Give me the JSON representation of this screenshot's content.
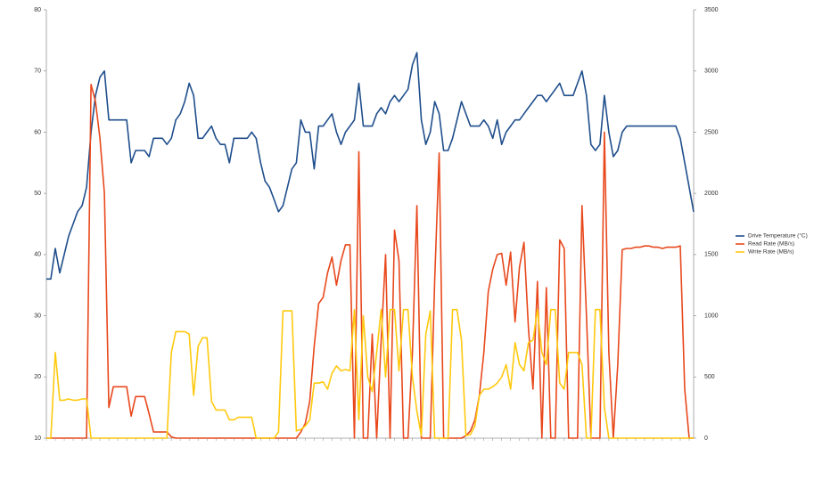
{
  "chart_data": {
    "type": "line",
    "ylim": [
      10,
      80
    ],
    "yticks": [
      10,
      20,
      30,
      40,
      50,
      60,
      70,
      80
    ],
    "y2lim": [
      0,
      3500
    ],
    "y2ticks": [
      0,
      500,
      1000,
      1500,
      2000,
      2500,
      3000,
      3500
    ],
    "legend": "right",
    "series": [
      {
        "name": "Drive Temperature (°C)",
        "color": "#1f4e8c",
        "values": [
          36,
          36,
          41,
          37,
          40,
          43,
          45,
          47,
          48,
          51,
          60,
          66,
          69,
          70,
          62,
          62,
          62,
          62,
          62,
          55,
          57,
          57,
          57,
          56,
          59,
          59,
          59,
          58,
          59,
          62,
          63,
          65,
          68,
          66,
          59,
          59,
          60,
          61,
          59,
          58,
          58,
          55,
          59,
          59,
          59,
          59,
          60,
          59,
          55,
          52,
          51,
          49,
          47,
          48,
          51,
          54,
          55,
          62,
          60,
          60,
          54,
          61,
          61,
          62,
          63,
          60,
          58,
          60,
          61,
          62,
          68,
          61,
          61,
          61,
          63,
          64,
          63,
          65,
          66,
          65,
          66,
          67,
          71,
          73,
          62,
          58,
          60,
          65,
          63,
          57,
          57,
          59,
          62,
          65,
          63,
          61,
          61,
          61,
          62,
          61,
          59,
          62,
          58,
          60,
          61,
          62,
          62,
          63,
          64,
          65,
          66,
          66,
          65,
          66,
          67,
          68,
          66,
          66,
          66,
          68,
          70,
          66,
          58,
          57,
          58,
          66,
          60,
          56,
          57,
          60,
          61,
          61,
          61,
          61,
          61,
          61,
          61,
          61,
          61,
          61,
          61,
          61,
          59,
          55,
          51,
          47
        ]
      },
      {
        "name": "Read Rate (MB/s)",
        "color": "#e8481c",
        "axis": "y2",
        "values": [
          0,
          0,
          0,
          0,
          0,
          0,
          0,
          0,
          0,
          0,
          2890,
          2750,
          2450,
          2000,
          250,
          420,
          420,
          420,
          420,
          180,
          340,
          340,
          340,
          200,
          50,
          50,
          50,
          50,
          10,
          0,
          0,
          0,
          0,
          0,
          0,
          0,
          0,
          0,
          0,
          0,
          0,
          0,
          0,
          0,
          0,
          0,
          0,
          0,
          0,
          0,
          0,
          0,
          0,
          0,
          0,
          0,
          0,
          50,
          120,
          300,
          750,
          1100,
          1150,
          1350,
          1480,
          1250,
          1450,
          1580,
          1580,
          0,
          2340,
          0,
          0,
          850,
          0,
          800,
          1500,
          0,
          1700,
          1450,
          0,
          0,
          700,
          1900,
          0,
          0,
          0,
          1300,
          2330,
          0,
          0,
          0,
          0,
          0,
          20,
          60,
          150,
          350,
          700,
          1200,
          1380,
          1500,
          1510,
          1250,
          1520,
          950,
          1400,
          1600,
          900,
          400,
          1280,
          0,
          1230,
          0,
          0,
          1620,
          1550,
          0,
          0,
          0,
          1900,
          1000,
          0,
          0,
          0,
          2500,
          700,
          0,
          600,
          1540,
          1550,
          1550,
          1560,
          1560,
          1570,
          1570,
          1560,
          1560,
          1550,
          1560,
          1560,
          1560,
          1570,
          400,
          0,
          0
        ]
      },
      {
        "name": "Write Rate (MB/s)",
        "color": "#ffc90e",
        "axis": "y2",
        "values": [
          0,
          0,
          700,
          310,
          310,
          320,
          310,
          310,
          320,
          320,
          0,
          0,
          0,
          0,
          0,
          0,
          0,
          0,
          0,
          0,
          0,
          0,
          0,
          0,
          0,
          0,
          0,
          0,
          700,
          870,
          870,
          870,
          850,
          350,
          750,
          820,
          820,
          300,
          230,
          230,
          230,
          150,
          150,
          170,
          170,
          170,
          170,
          0,
          0,
          0,
          0,
          0,
          50,
          1040,
          1040,
          1040,
          60,
          70,
          100,
          150,
          450,
          450,
          460,
          400,
          530,
          590,
          550,
          560,
          550,
          1050,
          150,
          1000,
          500,
          380,
          700,
          1050,
          500,
          1050,
          1050,
          550,
          1050,
          1050,
          500,
          220,
          20,
          850,
          1040,
          0,
          0,
          0,
          0,
          1050,
          1050,
          800,
          20,
          30,
          100,
          350,
          400,
          400,
          420,
          450,
          500,
          600,
          400,
          780,
          600,
          550,
          780,
          800,
          1050,
          700,
          600,
          1050,
          1050,
          450,
          400,
          700,
          700,
          700,
          600,
          0,
          0,
          1050,
          1050,
          250,
          0,
          0,
          0,
          0,
          0,
          0,
          0,
          0,
          0,
          0,
          0,
          0,
          0,
          0,
          0,
          0,
          0,
          0,
          0,
          0
        ]
      }
    ]
  }
}
